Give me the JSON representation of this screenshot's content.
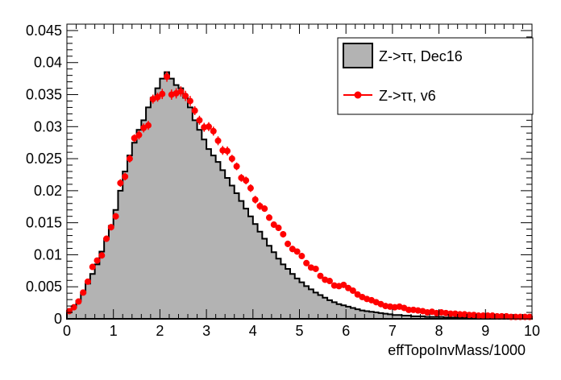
{
  "chart_data": {
    "type": "histogram",
    "xlabel": "effTopoInvMass/1000",
    "ylabel": "",
    "xlim": [
      0,
      10
    ],
    "ylim": [
      0,
      0.046
    ],
    "x_ticks": [
      "0",
      "1",
      "2",
      "3",
      "4",
      "5",
      "6",
      "7",
      "8",
      "9",
      "10"
    ],
    "y_ticks": [
      "0",
      "0.005",
      "0.01",
      "0.015",
      "0.02",
      "0.025",
      "0.03",
      "0.035",
      "0.04",
      "0.045"
    ],
    "legend_position": "top-right",
    "colors": {
      "hist_fill": "#b3b3b3",
      "hist_line": "#000000",
      "points": "#ff0000"
    },
    "bin_width": 0.1,
    "series": [
      {
        "name": "Z->ττ, Dec16",
        "style": "filled-histogram",
        "values": [
          0.001,
          0.0018,
          0.0028,
          0.004,
          0.0055,
          0.007,
          0.0085,
          0.0105,
          0.0125,
          0.0145,
          0.017,
          0.02,
          0.023,
          0.0255,
          0.0275,
          0.0295,
          0.031,
          0.033,
          0.0345,
          0.036,
          0.0375,
          0.0385,
          0.0375,
          0.0365,
          0.036,
          0.0345,
          0.033,
          0.031,
          0.0295,
          0.028,
          0.0265,
          0.0255,
          0.0245,
          0.0232,
          0.022,
          0.0208,
          0.0196,
          0.0184,
          0.0172,
          0.016,
          0.0148,
          0.0136,
          0.0125,
          0.0114,
          0.0104,
          0.0094,
          0.0085,
          0.0078,
          0.007,
          0.0063,
          0.0057,
          0.0051,
          0.0046,
          0.0041,
          0.0037,
          0.0033,
          0.0029,
          0.0026,
          0.0023,
          0.0021,
          0.0019,
          0.0017,
          0.0015,
          0.0013,
          0.0012,
          0.0011,
          0.001,
          0.0009,
          0.0008,
          0.0007,
          0.0006,
          0.0006,
          0.0005,
          0.0005,
          0.0004,
          0.0004,
          0.0004,
          0.0003,
          0.0003,
          0.0003,
          0.0003,
          0.0002,
          0.0002,
          0.0002,
          0.0002,
          0.0002,
          0.0002,
          0.0001,
          0.0001,
          0.0001,
          0.0001,
          0.0001,
          0.0001,
          0.0001,
          0.0001,
          0.0001,
          0.0001,
          0.0001,
          0.0001,
          0.0001
        ]
      },
      {
        "name": "Z->ττ, v6",
        "style": "points-with-errors",
        "values": [
          0.0012,
          0.0018,
          0.0027,
          0.0041,
          0.0058,
          0.0081,
          0.0091,
          0.0099,
          0.0125,
          0.0143,
          0.016,
          0.0212,
          0.0222,
          0.025,
          0.0282,
          0.0287,
          0.0298,
          0.0302,
          0.0343,
          0.0346,
          0.0351,
          0.0378,
          0.035,
          0.0352,
          0.0355,
          0.0348,
          0.034,
          0.0325,
          0.031,
          0.0299,
          0.03,
          0.0293,
          0.0278,
          0.0263,
          0.0262,
          0.025,
          0.0238,
          0.022,
          0.0216,
          0.0204,
          0.0186,
          0.0176,
          0.0172,
          0.0158,
          0.0147,
          0.0142,
          0.0132,
          0.0117,
          0.0109,
          0.0105,
          0.0098,
          0.0087,
          0.008,
          0.0078,
          0.0067,
          0.0061,
          0.0059,
          0.0052,
          0.0051,
          0.0053,
          0.0048,
          0.0044,
          0.0038,
          0.0034,
          0.0031,
          0.0029,
          0.0026,
          0.0023,
          0.002,
          0.0019,
          0.0018,
          0.0019,
          0.0017,
          0.0014,
          0.0014,
          0.0013,
          0.0012,
          0.001,
          0.0011,
          0.0009,
          0.001,
          0.0009,
          0.0008,
          0.0008,
          0.0007,
          0.0007,
          0.0006,
          0.0006,
          0.0005,
          0.0005,
          0.0005,
          0.0005,
          0.0004,
          0.0004,
          0.0004,
          0.0003,
          0.0003,
          0.0003,
          0.0003,
          0.0003
        ],
        "errors": [
          0.0002,
          0.0003,
          0.0003,
          0.0003,
          0.0004,
          0.0004,
          0.0004,
          0.0005,
          0.0005,
          0.0005,
          0.0005,
          0.0006,
          0.0006,
          0.0006,
          0.0006,
          0.0007,
          0.0007,
          0.0007,
          0.0007,
          0.0007,
          0.0008,
          0.0008,
          0.0008,
          0.0008,
          0.0008,
          0.0008,
          0.0008,
          0.0007,
          0.0007,
          0.0007,
          0.0007,
          0.0007,
          0.0007,
          0.0007,
          0.0007,
          0.0006,
          0.0006,
          0.0006,
          0.0006,
          0.0006,
          0.0006,
          0.0006,
          0.0005,
          0.0005,
          0.0005,
          0.0005,
          0.0005,
          0.0005,
          0.0005,
          0.0004,
          0.0004,
          0.0004,
          0.0004,
          0.0004,
          0.0004,
          0.0003,
          0.0003,
          0.0003,
          0.0003,
          0.0003,
          0.0003,
          0.0003,
          0.0003,
          0.0003,
          0.0003,
          0.0002,
          0.0002,
          0.0002,
          0.0002,
          0.0002,
          0.0002,
          0.0002,
          0.0002,
          0.0002,
          0.0002,
          0.0002,
          0.0002,
          0.0002,
          0.0002,
          0.0002,
          0.0002,
          0.0002,
          0.0002,
          0.0002,
          0.0002,
          0.0002,
          0.0002,
          0.0002,
          0.0002,
          0.0002,
          0.0002,
          0.0002,
          0.0002,
          0.0002,
          0.0002,
          0.0002,
          0.0002,
          0.0002,
          0.0002,
          0.0002
        ]
      }
    ]
  }
}
